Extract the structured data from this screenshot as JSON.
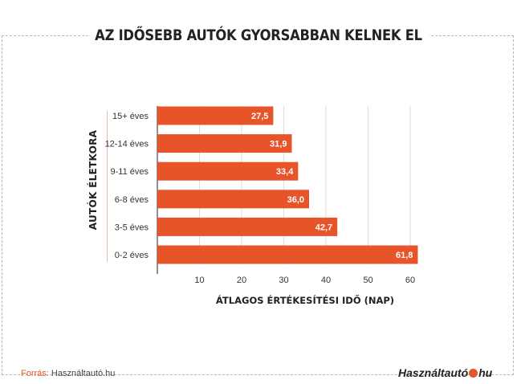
{
  "title": "AZ IDŐSEBB AUTÓK GYORSABBAN KELNEK EL",
  "source": {
    "label": "Forrás:",
    "text": "Használtautó.hu"
  },
  "logo": {
    "name": "Használtautó",
    "suffix": "hu"
  },
  "colors": {
    "bar": "#e8542a",
    "grid": "#dddddd",
    "axis": "#222222"
  },
  "chart_data": {
    "type": "bar",
    "orientation": "horizontal",
    "categories": [
      "15+ éves",
      "12-14 éves",
      "9-11 éves",
      "6-8 éves",
      "3-5 éves",
      "0-2 éves"
    ],
    "values": [
      27.5,
      31.9,
      33.4,
      36.0,
      42.7,
      61.8
    ],
    "value_labels": [
      "27,5",
      "31,9",
      "33,4",
      "36,0",
      "42,7",
      "61,8"
    ],
    "xlabel": "ÁTLAGOS ÉRTÉKESÍTÉSI IDŐ (NAP)",
    "ylabel": "AUTÓK ÉLETKORA",
    "xticks": [
      10,
      20,
      30,
      40,
      50,
      60
    ],
    "xlim": [
      0,
      63
    ],
    "grid": true,
    "legend": "none"
  }
}
